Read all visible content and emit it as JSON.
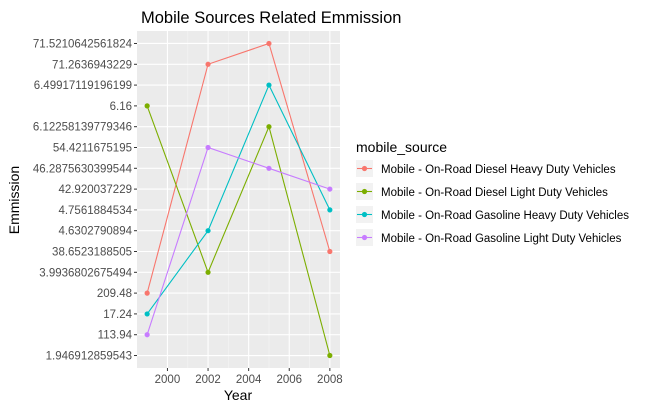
{
  "chart_data": {
    "type": "line",
    "title": "Mobile Sources Related Emmission",
    "xlabel": "Year",
    "ylabel": "Emmission",
    "x_ticks": [
      "2000",
      "2002",
      "2004",
      "2006",
      "2008"
    ],
    "xlim": [
      1998.5,
      2008.5
    ],
    "y_categories": [
      "1.946912859543",
      "113.94",
      "17.24",
      "209.48",
      "3.9936802675494",
      "38.6523188505",
      "4.6302790894",
      "4.7561884534",
      "42.920037229",
      "46.2875630399544",
      "54.4211675195",
      "6.12258139779346",
      "6.16",
      "6.49917119196199",
      "71.2636943229",
      "71.5210642561824"
    ],
    "legend": {
      "title": "mobile_source",
      "position": "right"
    },
    "grid": true,
    "series": [
      {
        "name": "Mobile - On-Road Diesel Heavy Duty Vehicles",
        "color": "#F8766D",
        "x": [
          1999,
          2002,
          2005,
          2008
        ],
        "y": [
          "209.48",
          "71.2636943229",
          "71.5210642561824",
          "38.6523188505"
        ]
      },
      {
        "name": "Mobile - On-Road Diesel Light Duty Vehicles",
        "color": "#7CAE00",
        "x": [
          1999,
          2002,
          2005,
          2008
        ],
        "y": [
          "6.16",
          "3.9936802675494",
          "6.12258139779346",
          "1.946912859543"
        ]
      },
      {
        "name": "Mobile - On-Road Gasoline Heavy Duty Vehicles",
        "color": "#00BFC4",
        "x": [
          1999,
          2002,
          2005,
          2008
        ],
        "y": [
          "17.24",
          "4.6302790894",
          "6.49917119196199",
          "4.7561884534"
        ]
      },
      {
        "name": "Mobile - On-Road Gasoline Light Duty Vehicles",
        "color": "#C77CFF",
        "x": [
          1999,
          2002,
          2005,
          2008
        ],
        "y": [
          "113.94",
          "54.4211675195",
          "46.2875630399544",
          "42.920037229"
        ]
      }
    ]
  }
}
